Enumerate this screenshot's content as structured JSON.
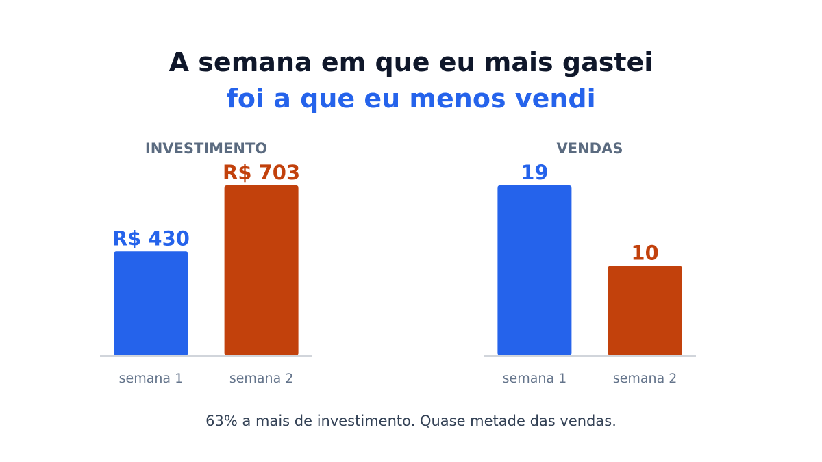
{
  "header": {
    "line1": "A semana em que eu mais gastei",
    "line2": "foi a que eu menos vendi"
  },
  "colors": {
    "semana1": "#2563eb",
    "semana2": "#c2410c",
    "chart_title": "#5b6b80",
    "baseline": "#d1d5db",
    "tick_label": "#64748b"
  },
  "chart_data": [
    {
      "type": "bar",
      "title": "INVESTIMENTO",
      "categories": [
        "semana 1",
        "semana 2"
      ],
      "values": [
        430,
        703
      ],
      "data_labels": [
        "R$ 430",
        "R$ 703"
      ],
      "ylim": [
        0,
        703
      ],
      "grid": false
    },
    {
      "type": "bar",
      "title": "VENDAS",
      "categories": [
        "semana 1",
        "semana 2"
      ],
      "values": [
        19,
        10
      ],
      "data_labels": [
        "19",
        "10"
      ],
      "ylim": [
        0,
        19
      ],
      "grid": false
    }
  ],
  "footer": {
    "caption": "63% a mais de investimento. Quase metade das vendas."
  }
}
